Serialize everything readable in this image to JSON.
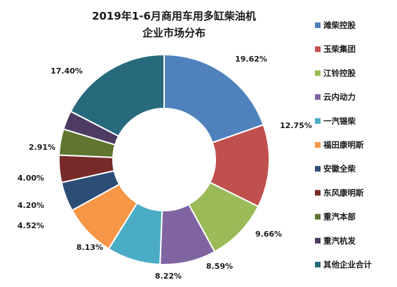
{
  "chart_data": {
    "type": "pie",
    "variant": "donut",
    "title_lines": [
      "2019年1-6月商用车用多缸柴油机",
      "企业市场分布"
    ],
    "legend_position": "right",
    "slices": [
      {
        "label": "潍柴控股",
        "value": 19.62,
        "value_label": "19.62%",
        "color": "#4F81BD"
      },
      {
        "label": "玉柴集团",
        "value": 12.75,
        "value_label": "12.75%",
        "color": "#C0504D"
      },
      {
        "label": "江铃控股",
        "value": 9.66,
        "value_label": "9.66%",
        "color": "#9BBB59"
      },
      {
        "label": "云内动力",
        "value": 8.59,
        "value_label": "8.59%",
        "color": "#8064A2"
      },
      {
        "label": "一汽锡柴",
        "value": 8.22,
        "value_label": "8.22%",
        "color": "#4BACC6"
      },
      {
        "label": "福田康明斯",
        "value": 8.13,
        "value_label": "8.13%",
        "color": "#F79646"
      },
      {
        "label": "安徽全柴",
        "value": 4.52,
        "value_label": "4.52%",
        "color": "#2C4D75"
      },
      {
        "label": "东风康明斯",
        "value": 4.2,
        "value_label": "4.20%",
        "color": "#772C2A"
      },
      {
        "label": "重汽本部",
        "value": 4.0,
        "value_label": "4.00%",
        "color": "#5F7530"
      },
      {
        "label": "重汽杭发",
        "value": 2.91,
        "value_label": "2.91%",
        "color": "#4D3B62"
      },
      {
        "label": "其他企业合计",
        "value": 17.4,
        "value_label": "17.40%",
        "color": "#276A7C"
      }
    ]
  }
}
